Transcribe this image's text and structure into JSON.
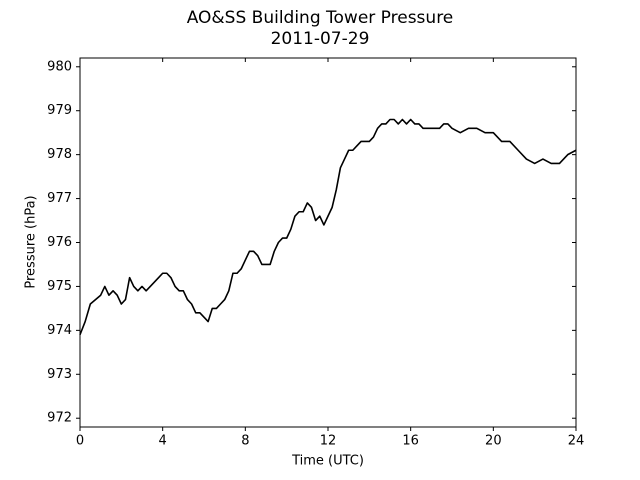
{
  "chart_data": {
    "type": "line",
    "title": "AO&SS Building Tower Pressure",
    "subtitle": "2011-07-29",
    "x_label": "Time (UTC)",
    "y_label": "Pressure (hPa)",
    "color": "#000000",
    "x": [
      0,
      0.25,
      0.5,
      0.75,
      1.0,
      1.2,
      1.4,
      1.6,
      1.8,
      2.0,
      2.2,
      2.4,
      2.6,
      2.8,
      3.0,
      3.2,
      3.4,
      3.6,
      3.8,
      4.0,
      4.2,
      4.4,
      4.6,
      4.8,
      5.0,
      5.2,
      5.4,
      5.6,
      5.8,
      6.0,
      6.2,
      6.4,
      6.6,
      6.8,
      7.0,
      7.2,
      7.4,
      7.6,
      7.8,
      8.0,
      8.2,
      8.4,
      8.6,
      8.8,
      9.0,
      9.2,
      9.4,
      9.6,
      9.8,
      10.0,
      10.2,
      10.4,
      10.6,
      10.8,
      11.0,
      11.2,
      11.4,
      11.6,
      11.8,
      12.0,
      12.2,
      12.4,
      12.6,
      12.8,
      13.0,
      13.2,
      13.4,
      13.6,
      13.8,
      14.0,
      14.2,
      14.4,
      14.6,
      14.8,
      15.0,
      15.2,
      15.4,
      15.6,
      15.8,
      16.0,
      16.2,
      16.4,
      16.6,
      16.8,
      17.0,
      17.2,
      17.4,
      17.6,
      17.8,
      18.0,
      18.4,
      18.8,
      19.2,
      19.6,
      20.0,
      20.4,
      20.8,
      21.2,
      21.6,
      22.0,
      22.4,
      22.8,
      23.2,
      23.6,
      24.0
    ],
    "values": [
      973.9,
      974.2,
      974.6,
      974.7,
      974.8,
      975.0,
      974.8,
      974.9,
      974.8,
      974.6,
      974.7,
      975.2,
      975.0,
      974.9,
      975.0,
      974.9,
      975.0,
      975.1,
      975.2,
      975.3,
      975.3,
      975.2,
      975.0,
      974.9,
      974.9,
      974.7,
      974.6,
      974.4,
      974.4,
      974.3,
      974.2,
      974.5,
      974.5,
      974.6,
      974.7,
      974.9,
      975.3,
      975.3,
      975.4,
      975.6,
      975.8,
      975.8,
      975.7,
      975.5,
      975.5,
      975.5,
      975.8,
      976.0,
      976.1,
      976.1,
      976.3,
      976.6,
      976.7,
      976.7,
      976.9,
      976.8,
      976.5,
      976.6,
      976.4,
      976.6,
      976.8,
      977.2,
      977.7,
      977.9,
      978.1,
      978.1,
      978.2,
      978.3,
      978.3,
      978.3,
      978.4,
      978.6,
      978.7,
      978.7,
      978.8,
      978.8,
      978.7,
      978.8,
      978.7,
      978.8,
      978.7,
      978.7,
      978.6,
      978.6,
      978.6,
      978.6,
      978.6,
      978.7,
      978.7,
      978.6,
      978.5,
      978.6,
      978.6,
      978.5,
      978.5,
      978.3,
      978.3,
      978.1,
      977.9,
      977.8,
      977.9,
      977.8,
      977.8,
      978.0,
      978.1
    ],
    "xlim": [
      0,
      24
    ],
    "xticks": [
      0,
      4,
      8,
      12,
      16,
      20,
      24
    ],
    "ylim": [
      971.8,
      980.2
    ],
    "yticks": [
      972,
      973,
      974,
      975,
      976,
      977,
      978,
      979,
      980
    ]
  }
}
